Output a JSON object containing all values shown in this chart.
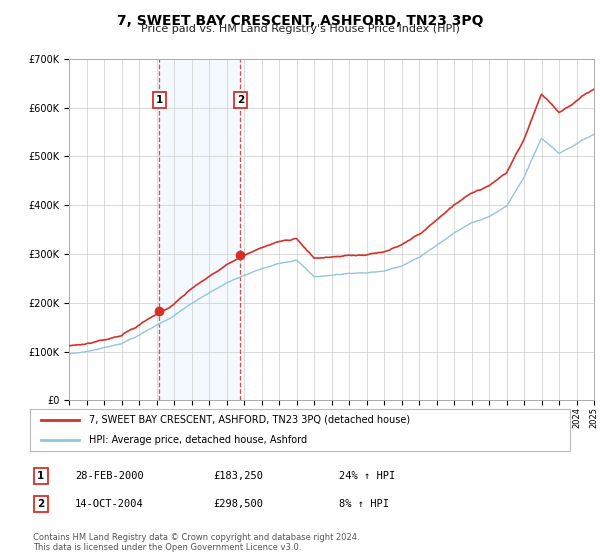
{
  "title": "7, SWEET BAY CRESCENT, ASHFORD, TN23 3PQ",
  "subtitle": "Price paid vs. HM Land Registry's House Price Index (HPI)",
  "legend_line1": "7, SWEET BAY CRESCENT, ASHFORD, TN23 3PQ (detached house)",
  "legend_line2": "HPI: Average price, detached house, Ashford",
  "sale1_date": "28-FEB-2000",
  "sale1_price": "£183,250",
  "sale1_hpi": "24% ↑ HPI",
  "sale1_year": 2000.15,
  "sale1_value": 183250,
  "sale2_date": "14-OCT-2004",
  "sale2_price": "£298,500",
  "sale2_hpi": "8% ↑ HPI",
  "sale2_year": 2004.79,
  "sale2_value": 298500,
  "hpi_color": "#92c5de",
  "price_color": "#d73027",
  "background_color": "#ffffff",
  "shaded_region_color": "#ddeeff",
  "footer1": "Contains HM Land Registry data © Crown copyright and database right 2024.",
  "footer2": "This data is licensed under the Open Government Licence v3.0.",
  "ylim_min": 0,
  "ylim_max": 700000,
  "xmin": 1995,
  "xmax": 2025
}
